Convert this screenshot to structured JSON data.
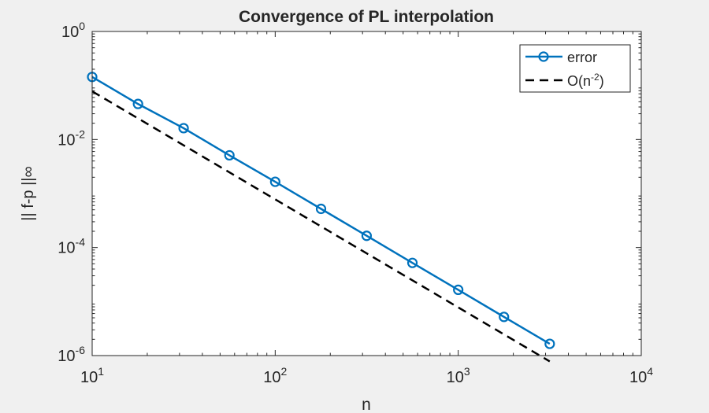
{
  "chart_data": {
    "type": "line",
    "title": "Convergence of PL interpolation",
    "xlabel": "n",
    "ylabel": "|| f-p ||∞",
    "xscale": "log",
    "yscale": "log",
    "xlim": [
      10,
      10000
    ],
    "ylim": [
      1e-06,
      1
    ],
    "grid": false,
    "legend_position": "top-right",
    "x_ticks": [
      {
        "value": 10,
        "base": "10",
        "exp": "1"
      },
      {
        "value": 100,
        "base": "10",
        "exp": "2"
      },
      {
        "value": 1000,
        "base": "10",
        "exp": "3"
      },
      {
        "value": 10000,
        "base": "10",
        "exp": "4"
      }
    ],
    "y_ticks": [
      {
        "value": 1,
        "base": "10",
        "exp": "0"
      },
      {
        "value": 0.01,
        "base": "10",
        "exp": "-2"
      },
      {
        "value": 0.0001,
        "base": "10",
        "exp": "-4"
      },
      {
        "value": 1e-06,
        "base": "10",
        "exp": "-6"
      }
    ],
    "series": [
      {
        "name": "error",
        "color": "#0072BD",
        "style": "solid",
        "marker": "circle",
        "x": [
          10,
          17.8,
          31.6,
          56.2,
          100,
          178,
          316,
          562,
          1000,
          1778,
          3162
        ],
        "y": [
          0.144,
          0.0455,
          0.0162,
          0.0051,
          0.00165,
          0.00052,
          0.000165,
          5.2e-05,
          1.65e-05,
          5.2e-06,
          1.65e-06
        ]
      },
      {
        "name": "O(n^-2)",
        "legend_base": "O(n",
        "legend_sup": "-2",
        "legend_tail": ")",
        "color": "#000000",
        "style": "dashed",
        "marker": "none",
        "x": [
          10,
          3162
        ],
        "y": [
          0.078,
          7.8e-07
        ]
      }
    ]
  }
}
